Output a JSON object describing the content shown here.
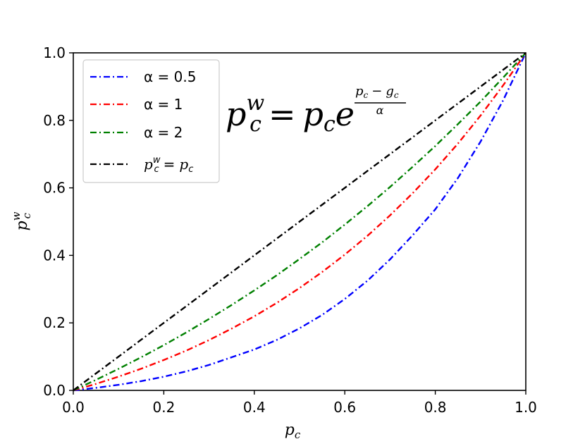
{
  "chart_data": {
    "type": "line",
    "xlabel": "p",
    "xlabel_sub": "c",
    "ylabel": "p",
    "ylabel_sub": "c",
    "ylabel_sup": "w",
    "xlim": [
      0.0,
      1.0
    ],
    "ylim": [
      0.0,
      1.0
    ],
    "x_ticks": [
      "0.0",
      "0.2",
      "0.4",
      "0.6",
      "0.8",
      "1.0"
    ],
    "y_ticks": [
      "0.0",
      "0.2",
      "0.4",
      "0.6",
      "0.8",
      "1.0"
    ],
    "grid": false,
    "legend_position": "top-left",
    "annotation": {
      "lhs_base": "p",
      "lhs_sub": "c",
      "lhs_sup": "w",
      "equals": "=",
      "rhs_base": "p",
      "rhs_sub": "c",
      "rhs_exp_base": "e",
      "exp_numerator": "p",
      "exp_numerator_sub": "c",
      "exp_minus": "−",
      "exp_numerator_2": "g",
      "exp_numerator_2_sub": "c",
      "exp_denominator": "α"
    },
    "x": [
      0.0,
      0.05,
      0.1,
      0.15,
      0.2,
      0.25,
      0.3,
      0.35,
      0.4,
      0.45,
      0.5,
      0.55,
      0.6,
      0.65,
      0.7,
      0.75,
      0.8,
      0.85,
      0.9,
      0.95,
      1.0
    ],
    "series": [
      {
        "name": "α = 0.5",
        "legend_text": "α = 0.5",
        "color": "#0000ff",
        "values": [
          0.0,
          0.0075,
          0.0165,
          0.0273,
          0.0406,
          0.0564,
          0.0753,
          0.0982,
          0.1211,
          0.1496,
          0.1839,
          0.2235,
          0.2707,
          0.3248,
          0.388,
          0.4598,
          0.5363,
          0.6292,
          0.7369,
          0.8596,
          1.0
        ]
      },
      {
        "name": "α = 1",
        "legend_text": "α = 1",
        "color": "#ff0000",
        "values": [
          0.0,
          0.0193,
          0.0407,
          0.0641,
          0.0899,
          0.118,
          0.149,
          0.183,
          0.2195,
          0.2594,
          0.3033,
          0.3508,
          0.4022,
          0.4579,
          0.5186,
          0.5841,
          0.6549,
          0.7312,
          0.8143,
          0.9038,
          1.0
        ]
      },
      {
        "name": "α = 2",
        "legend_text": "α = 2",
        "color": "#008000",
        "values": [
          0.0,
          0.0311,
          0.0638,
          0.0982,
          0.1341,
          0.1719,
          0.2116,
          0.2531,
          0.2963,
          0.3413,
          0.3894,
          0.4387,
          0.4913,
          0.5458,
          0.6028,
          0.6625,
          0.724,
          0.7889,
          0.8556,
          0.9268,
          1.0
        ]
      },
      {
        "name": "p_c^w = p_c",
        "legend_base": "p",
        "legend_sub": "c",
        "legend_sup": "w",
        "legend_equals": "=",
        "legend_rhs_base": "p",
        "legend_rhs_sub": "c",
        "color": "#000000",
        "values": [
          0.0,
          0.05,
          0.1,
          0.15,
          0.2,
          0.25,
          0.3,
          0.35,
          0.4,
          0.45,
          0.5,
          0.55,
          0.6,
          0.65,
          0.7,
          0.75,
          0.8,
          0.85,
          0.9,
          0.95,
          1.0
        ]
      }
    ]
  }
}
